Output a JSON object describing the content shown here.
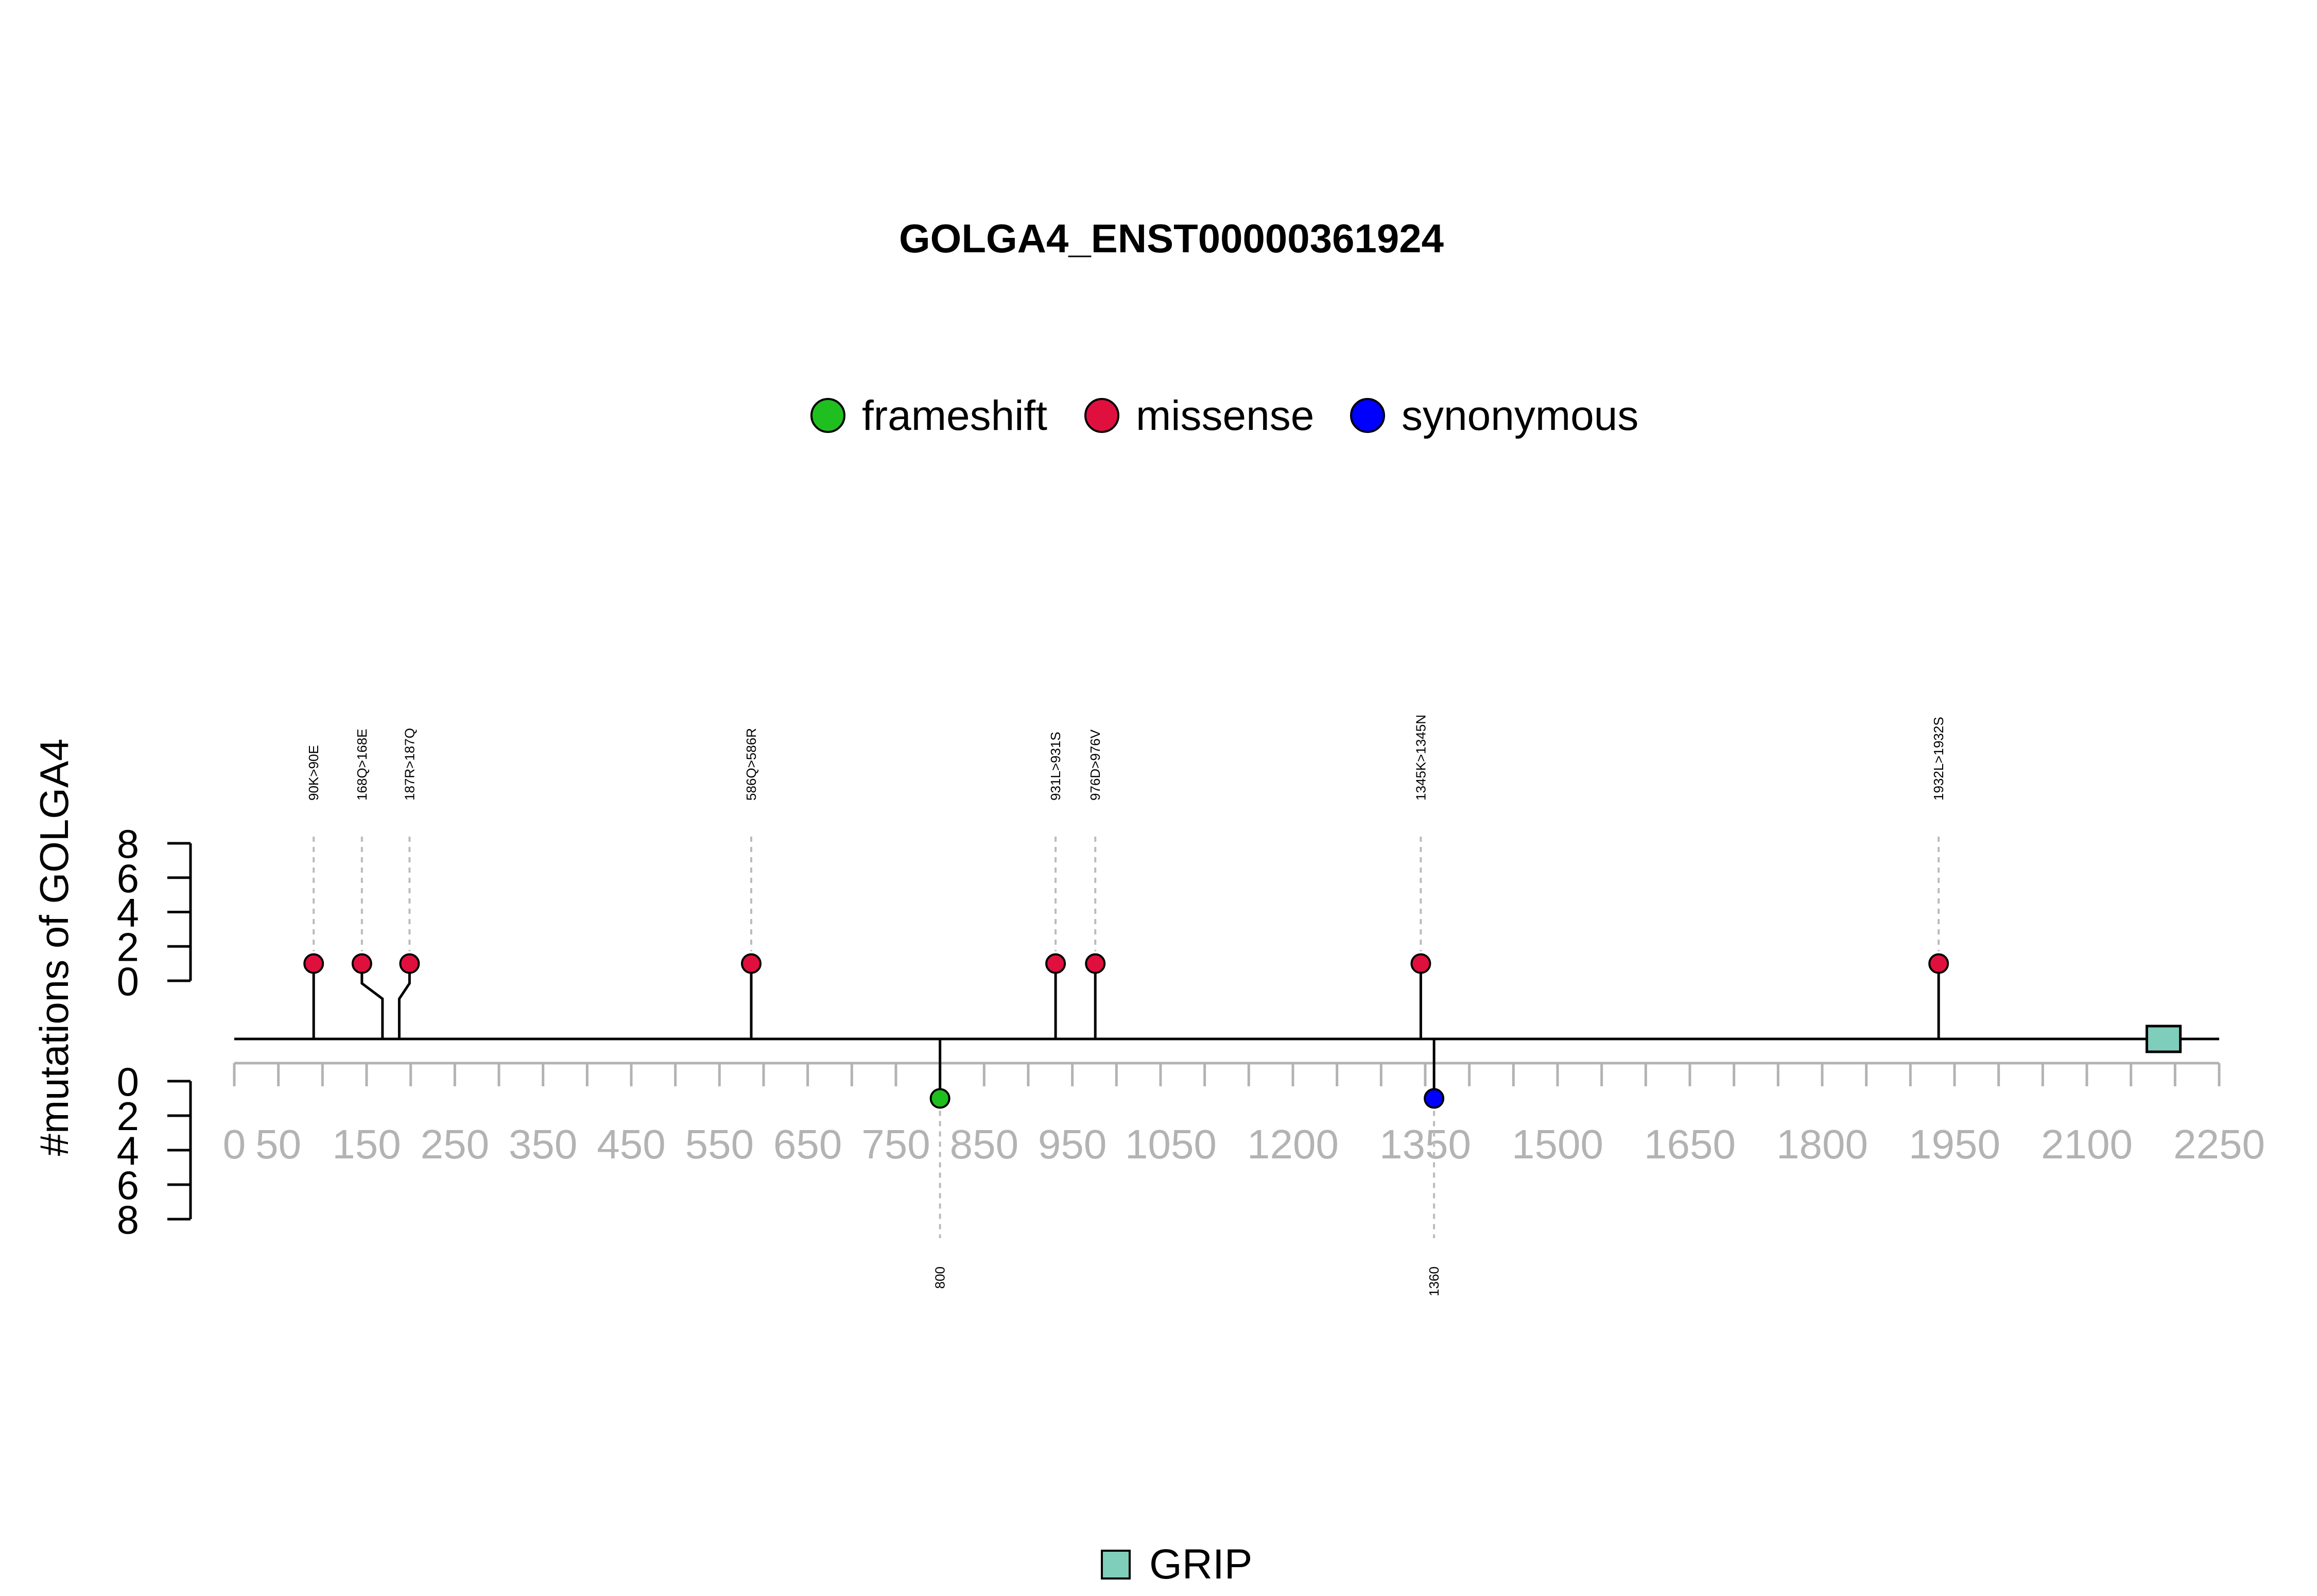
{
  "chart_data": {
    "type": "lollipop",
    "title": "GOLGA4_ENST00000361924",
    "ylabel": "#mutations of GOLGA4",
    "y_ticks_top": [
      "0",
      "2",
      "4",
      "6",
      "8"
    ],
    "y_ticks_bottom": [
      "0",
      "2",
      "4",
      "6",
      "8"
    ],
    "ylim": [
      0,
      8
    ],
    "xlim": [
      0,
      2250
    ],
    "x_ticks_major": [
      0,
      50,
      150,
      250,
      350,
      450,
      550,
      650,
      750,
      850,
      950,
      1050,
      1200,
      1350,
      1500,
      1650,
      1800,
      1950,
      2100,
      2250
    ],
    "x_ticks_major_labels": [
      "0",
      "50",
      "150",
      "250",
      "350",
      "450",
      "550",
      "650",
      "750",
      "850",
      "950",
      "1050",
      "1200",
      "1350",
      "1500",
      "1650",
      "1800",
      "1950",
      "2100",
      "2250"
    ],
    "legend": [
      {
        "name": "frameshift",
        "color": "#1fbf1f"
      },
      {
        "name": "missense",
        "color": "#e0103e"
      },
      {
        "name": "synonymous",
        "color": "#0000ff"
      }
    ],
    "mutations_top": [
      {
        "position": 90,
        "count": 1,
        "type": "missense",
        "label": "90K>90E"
      },
      {
        "position": 168,
        "count": 1,
        "type": "missense",
        "label": "168Q>168E"
      },
      {
        "position": 187,
        "count": 1,
        "type": "missense",
        "label": "187R>187Q"
      },
      {
        "position": 586,
        "count": 1,
        "type": "missense",
        "label": "586Q>586R"
      },
      {
        "position": 931,
        "count": 1,
        "type": "missense",
        "label": "931L>931S"
      },
      {
        "position": 976,
        "count": 1,
        "type": "missense",
        "label": "976D>976V"
      },
      {
        "position": 1345,
        "count": 1,
        "type": "missense",
        "label": "1345K>1345N"
      },
      {
        "position": 1932,
        "count": 1,
        "type": "missense",
        "label": "1932L>1932S"
      }
    ],
    "mutations_bottom": [
      {
        "position": 800,
        "count": 1,
        "type": "frameshift",
        "label": "800"
      },
      {
        "position": 1360,
        "count": 1,
        "type": "synonymous",
        "label": "1360"
      }
    ],
    "domains": [
      {
        "name": "GRIP",
        "start": 2168,
        "end": 2206,
        "color": "#7fcdbb"
      }
    ]
  }
}
